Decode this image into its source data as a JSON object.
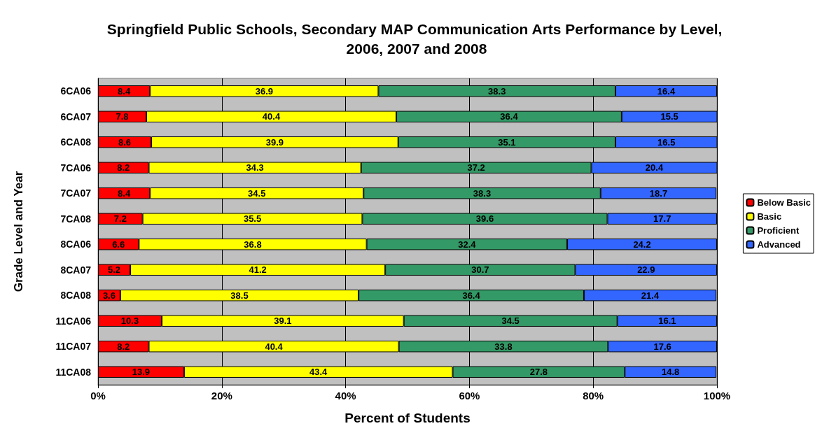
{
  "chart_data": {
    "type": "bar",
    "orientation": "horizontal",
    "stacked": true,
    "title": "Springfield Public Schools, Secondary MAP Communication Arts Performance by Level, 2006, 2007 and 2008",
    "xlabel": "Percent of Students",
    "ylabel": "Grade Level and Year",
    "categories": [
      "6CA06",
      "6CA07",
      "6CA08",
      "7CA06",
      "7CA07",
      "7CA08",
      "8CA06",
      "8CA07",
      "8CA08",
      "11CA06",
      "11CA07",
      "11CA08"
    ],
    "series": [
      {
        "name": "Below Basic",
        "color": "#ff0000",
        "values": [
          8.4,
          7.8,
          8.6,
          8.2,
          8.4,
          7.2,
          6.6,
          5.2,
          3.6,
          10.3,
          8.2,
          13.9
        ]
      },
      {
        "name": "Basic",
        "color": "#ffff00",
        "values": [
          36.9,
          40.4,
          39.9,
          34.3,
          34.5,
          35.5,
          36.8,
          41.2,
          38.5,
          39.1,
          40.4,
          43.4
        ]
      },
      {
        "name": "Proficient",
        "color": "#339966",
        "values": [
          38.3,
          36.4,
          35.1,
          37.2,
          38.3,
          39.6,
          32.4,
          30.7,
          36.4,
          34.5,
          33.8,
          27.8
        ]
      },
      {
        "name": "Advanced",
        "color": "#3366ff",
        "values": [
          16.4,
          15.5,
          16.5,
          20.4,
          18.7,
          17.7,
          24.2,
          22.9,
          21.4,
          16.1,
          17.6,
          14.8
        ]
      }
    ],
    "xlim": [
      0,
      100
    ],
    "xticks": [
      {
        "value": 0,
        "label": "0%"
      },
      {
        "value": 20,
        "label": "20%"
      },
      {
        "value": 40,
        "label": "40%"
      },
      {
        "value": 60,
        "label": "60%"
      },
      {
        "value": 80,
        "label": "80%"
      },
      {
        "value": 100,
        "label": "100%"
      }
    ],
    "grid": "x",
    "legend": "right",
    "data_labels": true
  }
}
